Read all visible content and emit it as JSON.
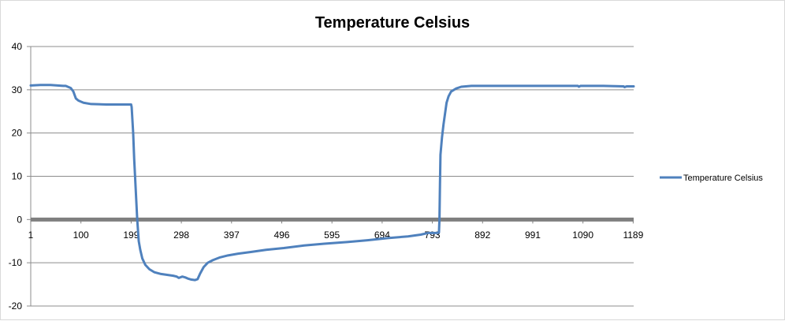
{
  "chart_data": {
    "type": "line",
    "title": "Temperature Celsius",
    "xlabel": "",
    "ylabel": "",
    "x_tick_labels": [
      "1",
      "100",
      "199",
      "298",
      "397",
      "496",
      "595",
      "694",
      "793",
      "892",
      "991",
      "1090",
      "1189"
    ],
    "y_tick_labels": [
      "40",
      "30",
      "20",
      "10",
      "0",
      "-10",
      "-20"
    ],
    "ylim": [
      -20,
      40
    ],
    "xlim": [
      1,
      1190
    ],
    "grid": true,
    "legend_position": "right",
    "series": [
      {
        "name": "Temperature Celsius",
        "color": "#4F81BD",
        "points": [
          [
            1,
            31.0
          ],
          [
            20,
            31.1
          ],
          [
            40,
            31.1
          ],
          [
            65,
            30.9
          ],
          [
            70,
            30.9
          ],
          [
            80,
            30.4
          ],
          [
            85,
            29.6
          ],
          [
            90,
            28.0
          ],
          [
            95,
            27.5
          ],
          [
            105,
            27.0
          ],
          [
            120,
            26.7
          ],
          [
            150,
            26.6
          ],
          [
            180,
            26.6
          ],
          [
            199,
            26.6
          ],
          [
            200,
            26.0
          ],
          [
            203,
            20.0
          ],
          [
            205,
            14.0
          ],
          [
            208,
            7.0
          ],
          [
            211,
            0.0
          ],
          [
            214,
            -5.0
          ],
          [
            217,
            -7.0
          ],
          [
            221,
            -9.0
          ],
          [
            227,
            -10.5
          ],
          [
            235,
            -11.5
          ],
          [
            245,
            -12.2
          ],
          [
            258,
            -12.6
          ],
          [
            270,
            -12.8
          ],
          [
            282,
            -13.0
          ],
          [
            289,
            -13.2
          ],
          [
            293,
            -13.5
          ],
          [
            300,
            -13.2
          ],
          [
            306,
            -13.4
          ],
          [
            312,
            -13.7
          ],
          [
            318,
            -13.9
          ],
          [
            325,
            -14.0
          ],
          [
            330,
            -13.8
          ],
          [
            335,
            -12.5
          ],
          [
            342,
            -11.0
          ],
          [
            350,
            -10.0
          ],
          [
            360,
            -9.4
          ],
          [
            373,
            -8.8
          ],
          [
            390,
            -8.3
          ],
          [
            410,
            -7.9
          ],
          [
            435,
            -7.5
          ],
          [
            465,
            -7.0
          ],
          [
            500,
            -6.6
          ],
          [
            540,
            -6.0
          ],
          [
            580,
            -5.6
          ],
          [
            625,
            -5.2
          ],
          [
            665,
            -4.8
          ],
          [
            705,
            -4.3
          ],
          [
            745,
            -3.9
          ],
          [
            770,
            -3.5
          ],
          [
            785,
            -3.1
          ],
          [
            803,
            -3.1
          ],
          [
            806,
            -3.0
          ],
          [
            807,
            0.0
          ],
          [
            808,
            8.0
          ],
          [
            809,
            15.0
          ],
          [
            812,
            19.0
          ],
          [
            815,
            22.0
          ],
          [
            818,
            24.5
          ],
          [
            821,
            27.0
          ],
          [
            825,
            28.5
          ],
          [
            830,
            29.6
          ],
          [
            840,
            30.3
          ],
          [
            850,
            30.7
          ],
          [
            870,
            30.9
          ],
          [
            900,
            30.9
          ],
          [
            950,
            30.9
          ],
          [
            1000,
            30.9
          ],
          [
            1050,
            30.9
          ],
          [
            1080,
            30.9
          ],
          [
            1082,
            30.7
          ],
          [
            1085,
            30.9
          ],
          [
            1130,
            30.9
          ],
          [
            1170,
            30.8
          ],
          [
            1172,
            30.6
          ],
          [
            1176,
            30.8
          ],
          [
            1190,
            30.8
          ]
        ]
      }
    ]
  }
}
